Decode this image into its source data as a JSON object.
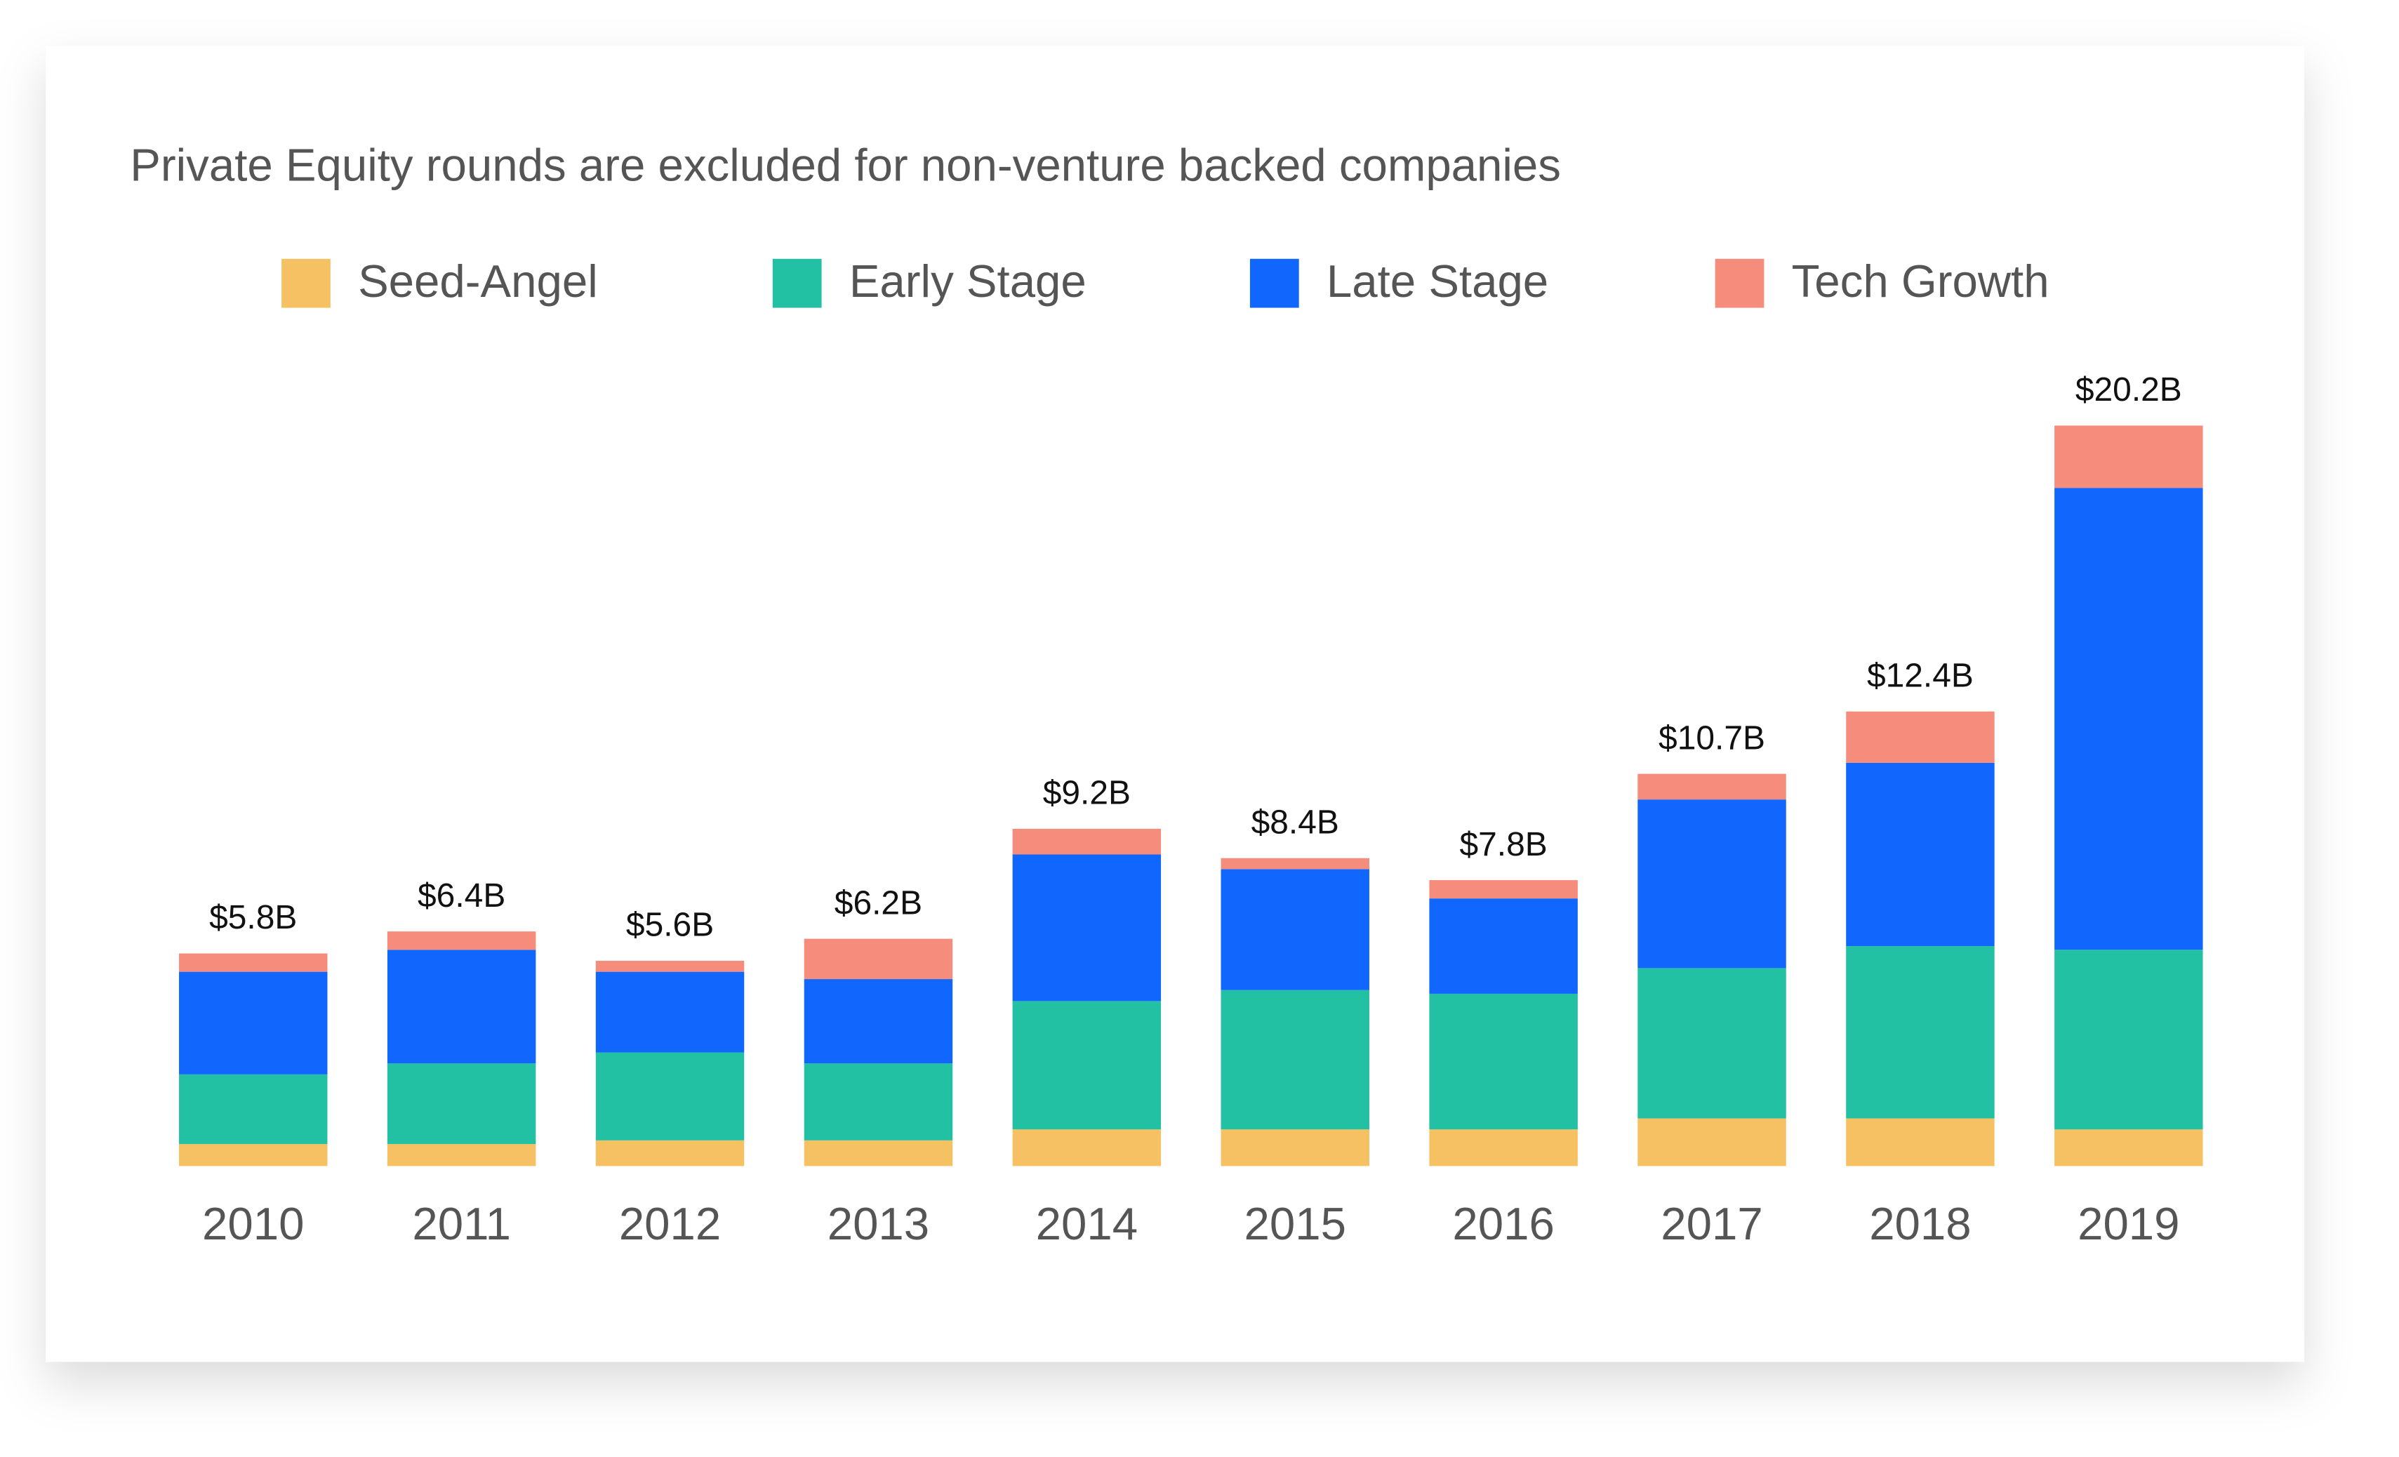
{
  "chart_data": {
    "type": "stacked-bar",
    "title": "Private Equity rounds are excluded for non-venture backed companies",
    "categories": [
      "2010",
      "2011",
      "2012",
      "2013",
      "2014",
      "2015",
      "2016",
      "2017",
      "2018",
      "2019"
    ],
    "series": [
      {
        "name": "Seed-Angel",
        "color": "#f5c162",
        "values": [
          0.6,
          0.6,
          0.7,
          0.7,
          1.0,
          1.0,
          1.0,
          1.3,
          1.3,
          1.0
        ]
      },
      {
        "name": "Early Stage",
        "color": "#23c1a4",
        "values": [
          1.9,
          2.2,
          2.4,
          2.1,
          3.5,
          3.8,
          3.7,
          4.1,
          4.7,
          4.9
        ]
      },
      {
        "name": "Late Stage",
        "color": "#1166fe",
        "values": [
          2.8,
          3.1,
          2.2,
          2.3,
          4.0,
          3.3,
          2.6,
          4.6,
          5.0,
          12.6
        ]
      },
      {
        "name": "Tech Growth",
        "color": "#f68c7c",
        "values": [
          0.5,
          0.5,
          0.3,
          1.1,
          0.7,
          0.3,
          0.5,
          0.7,
          1.4,
          1.7
        ]
      }
    ],
    "totals": {
      "values": [
        5.8,
        6.4,
        5.6,
        6.2,
        9.2,
        8.4,
        7.8,
        10.7,
        12.4,
        20.2
      ],
      "value_labels": [
        "$5.8B",
        "$6.4B",
        "$5.6B",
        "$6.2B",
        "$9.2B",
        "$8.4B",
        "$7.8B",
        "$10.7B",
        "$12.4B",
        "$20.2B"
      ]
    }
  }
}
